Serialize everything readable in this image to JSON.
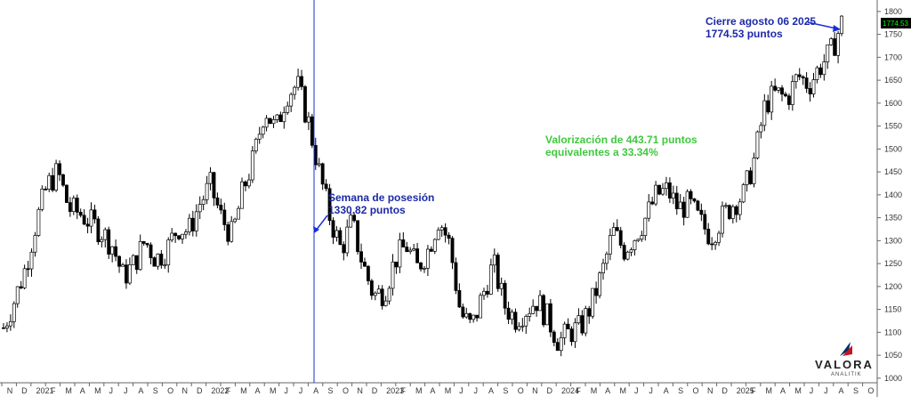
{
  "chart_data": {
    "type": "candlestick",
    "y_axis": {
      "side": "right",
      "ticks": [
        1000,
        1050,
        1100,
        1150,
        1200,
        1250,
        1300,
        1350,
        1400,
        1450,
        1500,
        1550,
        1600,
        1650,
        1700,
        1750,
        1800
      ],
      "range": [
        990,
        1825
      ],
      "last_price_label": "1774.53"
    },
    "x_axis": {
      "labels": [
        "N",
        "D",
        "2021",
        "F",
        "M",
        "A",
        "M",
        "J",
        "J",
        "A",
        "S",
        "O",
        "N",
        "D",
        "2022",
        "F",
        "M",
        "A",
        "M",
        "J",
        "J",
        "A",
        "S",
        "O",
        "N",
        "D",
        "2023",
        "F",
        "M",
        "A",
        "M",
        "J",
        "J",
        "A",
        "S",
        "O",
        "N",
        "D",
        "2024",
        "F",
        "M",
        "A",
        "M",
        "J",
        "J",
        "A",
        "S",
        "O",
        "N",
        "D",
        "2025",
        "F",
        "M",
        "A",
        "M",
        "J",
        "J",
        "A",
        "S",
        "O"
      ]
    },
    "weekly_closes": [
      1110,
      1170,
      1240,
      1340,
      1420,
      1450,
      1370,
      1360,
      1340,
      1320,
      1290,
      1220,
      1250,
      1300,
      1260,
      1280,
      1330,
      1320,
      1380,
      1420,
      1350,
      1310,
      1410,
      1480,
      1590,
      1540,
      1620,
      1640,
      1560,
      1450,
      1350,
      1280,
      1340,
      1250,
      1180,
      1190,
      1260,
      1290,
      1240,
      1280,
      1350,
      1290,
      1140,
      1110,
      1180,
      1250,
      1160,
      1130,
      1150,
      1170,
      1130,
      1080,
      1100,
      1110,
      1160,
      1230,
      1320,
      1280,
      1310,
      1350,
      1400,
      1410,
      1370,
      1380,
      1340,
      1310,
      1350,
      1380,
      1400,
      1480,
      1600,
      1620,
      1610,
      1660,
      1640,
      1680,
      1710,
      1774.53
    ],
    "blue_vertical_line_label": "Semana de posesión",
    "annotations": {
      "entry": {
        "line1": "Semana de posesión",
        "line2": "1330.82 puntos"
      },
      "close": {
        "line1": "Cierre agosto 06 2025",
        "line2": "1774.53  puntos"
      },
      "gain": {
        "line1": "Valorización de 443.71  puntos",
        "line2": "equivalentes a 33.34%"
      }
    },
    "colors": {
      "up": "#ffffff",
      "down": "#000000",
      "marker": "#1a2fd6",
      "annotation_blue": "#1d29a8",
      "annotation_green": "#3fc93f",
      "price_tag_bg": "#000000",
      "price_tag_fg": "#00ff00"
    }
  },
  "logo": {
    "name": "VALORA",
    "sub": "ANALITIK"
  }
}
